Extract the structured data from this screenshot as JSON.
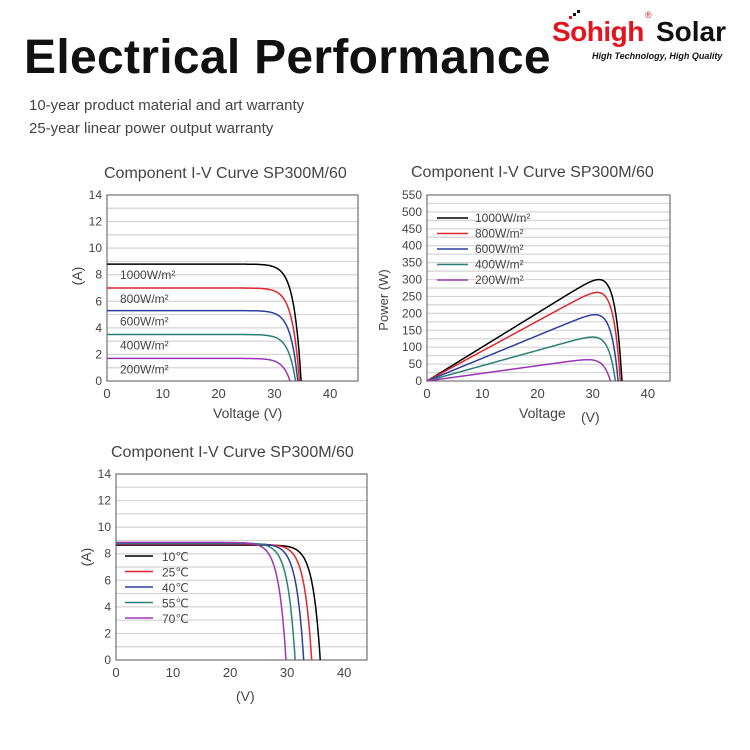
{
  "header": {
    "title": "Electrical Performance",
    "lines": [
      "10-year product material and art warranty",
      "25-year linear power output warranty"
    ]
  },
  "logo": {
    "brand": "Sohigh",
    "reg": "®",
    "word": "Solar",
    "tagline": "High Technology, High Quality"
  },
  "colors": {
    "black": "#000000",
    "red": "#e0262b",
    "blue": "#2b3f9e",
    "teal": "#2a8078",
    "purple": "#9b36b5"
  },
  "chart_data": [
    {
      "type": "line",
      "title": "Component I-V Curve SP300M/60",
      "xlabel": "Voltage (V)",
      "ylabel": "(A)",
      "xlim": [
        0,
        45
      ],
      "ylim": [
        0,
        14
      ],
      "xticks": [
        "0",
        "10",
        "20",
        "30",
        "40"
      ],
      "yticks": [
        "0",
        "2",
        "4",
        "6",
        "8",
        "10",
        "12",
        "14"
      ],
      "grid": true,
      "legend": "inline-labels",
      "series": [
        {
          "name": "1000W/m²",
          "color": "#000000",
          "isc": 8.8,
          "voc": 34.8
        },
        {
          "name": "800W/m²",
          "color": "#e0262b",
          "isc": 7.0,
          "voc": 34.5
        },
        {
          "name": "600W/m²",
          "color": "#2b3f9e",
          "isc": 5.3,
          "voc": 34.2
        },
        {
          "name": "400W/m²",
          "color": "#2a8078",
          "isc": 3.5,
          "voc": 33.8
        },
        {
          "name": "200W/m²",
          "color": "#9b36b5",
          "isc": 1.7,
          "voc": 32.8
        }
      ]
    },
    {
      "type": "line",
      "title": "Component I-V Curve SP300M/60",
      "xlabel": "Voltage",
      "xlabel_unit": "(V)",
      "ylabel": "Power (W)",
      "xlim": [
        0,
        44
      ],
      "ylim": [
        0,
        550
      ],
      "xticks": [
        "0",
        "10",
        "20",
        "30",
        "40"
      ],
      "yticks": [
        "0",
        "50",
        "100",
        "150",
        "200",
        "250",
        "300",
        "350",
        "400",
        "450",
        "500",
        "550"
      ],
      "grid": true,
      "legend": "top-left",
      "series": [
        {
          "name": "1000W/m²",
          "color": "#000000",
          "pmax": 300,
          "voc": 35.3
        },
        {
          "name": "800W/m²",
          "color": "#e0262b",
          "pmax": 262,
          "voc": 35.0
        },
        {
          "name": "600W/m²",
          "color": "#2b3f9e",
          "pmax": 196,
          "voc": 34.6
        },
        {
          "name": "400W/m²",
          "color": "#2a8078",
          "pmax": 130,
          "voc": 34.1
        },
        {
          "name": "200W/m²",
          "color": "#9b36b5",
          "pmax": 63,
          "voc": 33.2
        }
      ]
    },
    {
      "type": "line",
      "title": "Component I-V Curve SP300M/60",
      "xlabel": "(V)",
      "ylabel": "(A)",
      "xlim": [
        0,
        44
      ],
      "ylim": [
        0,
        14
      ],
      "xticks": [
        "0",
        "10",
        "20",
        "30",
        "40"
      ],
      "yticks": [
        "0",
        "2",
        "4",
        "6",
        "8",
        "10",
        "12",
        "14"
      ],
      "grid": true,
      "legend": "left",
      "series": [
        {
          "name": "10℃",
          "color": "#000000",
          "isc": 8.65,
          "voc": 35.8
        },
        {
          "name": "25℃",
          "color": "#e0262b",
          "isc": 8.7,
          "voc": 34.3
        },
        {
          "name": "40℃",
          "color": "#2b3f9e",
          "isc": 8.75,
          "voc": 32.9
        },
        {
          "name": "55℃",
          "color": "#2a8078",
          "isc": 8.8,
          "voc": 31.4
        },
        {
          "name": "70℃",
          "color": "#9b36b5",
          "isc": 8.85,
          "voc": 29.8
        }
      ]
    }
  ]
}
